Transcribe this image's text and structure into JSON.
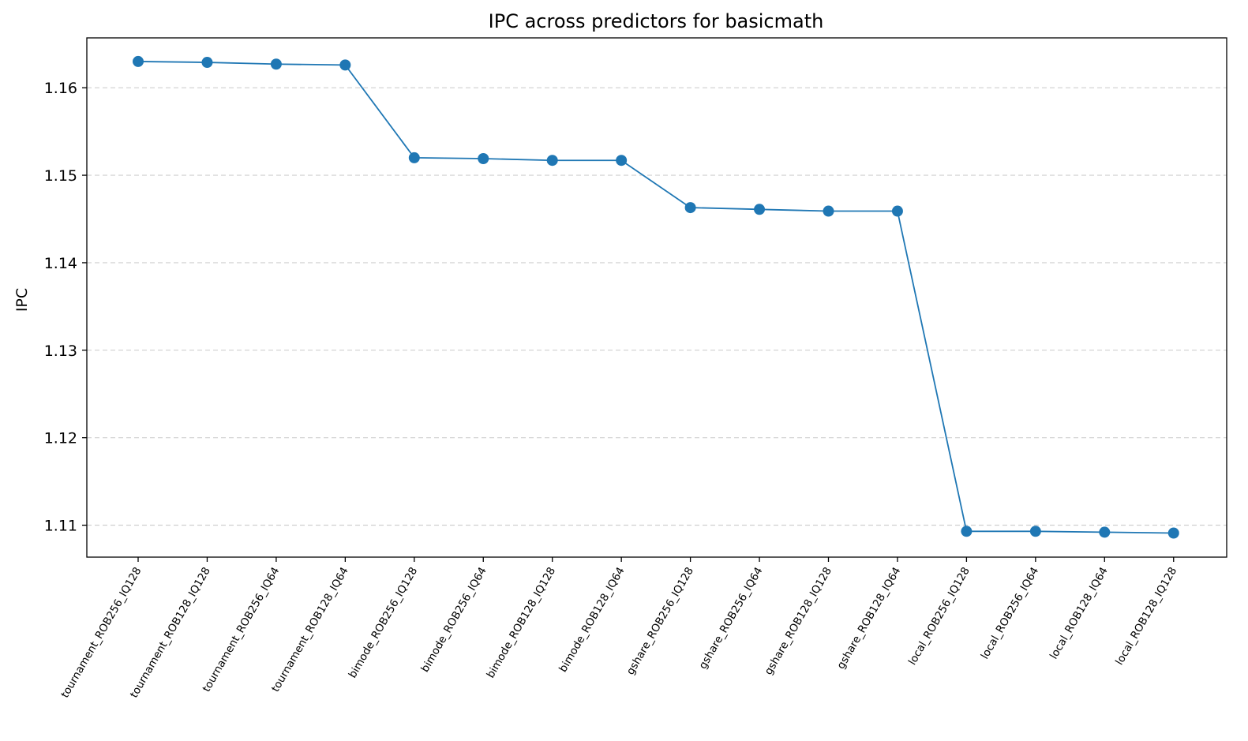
{
  "chart_data": {
    "type": "line",
    "title": "IPC across predictors for basicmath",
    "xlabel": "",
    "ylabel": "IPC",
    "categories": [
      "tournament_ROB256_IQ128",
      "tournament_ROB128_IQ128",
      "tournament_ROB256_IQ64",
      "tournament_ROB128_IQ64",
      "bimode_ROB256_IQ128",
      "bimode_ROB256_IQ64",
      "bimode_ROB128_IQ128",
      "bimode_ROB128_IQ64",
      "gshare_ROB256_IQ128",
      "gshare_ROB256_IQ64",
      "gshare_ROB128_IQ128",
      "gshare_ROB128_IQ64",
      "local_ROB256_IQ128",
      "local_ROB256_IQ64",
      "local_ROB128_IQ64",
      "local_ROB128_IQ128"
    ],
    "values": [
      1.163,
      1.1629,
      1.1627,
      1.1626,
      1.152,
      1.1519,
      1.1517,
      1.1517,
      1.1463,
      1.1461,
      1.1459,
      1.1459,
      1.1093,
      1.1093,
      1.1092,
      1.1091
    ],
    "yticks": [
      "1.11",
      "1.12",
      "1.13",
      "1.14",
      "1.15",
      "1.16"
    ],
    "ylim": [
      1.10635,
      1.1657
    ],
    "grid": "horizontal dashed",
    "line_color": "#1f77b4",
    "marker": "circle"
  }
}
